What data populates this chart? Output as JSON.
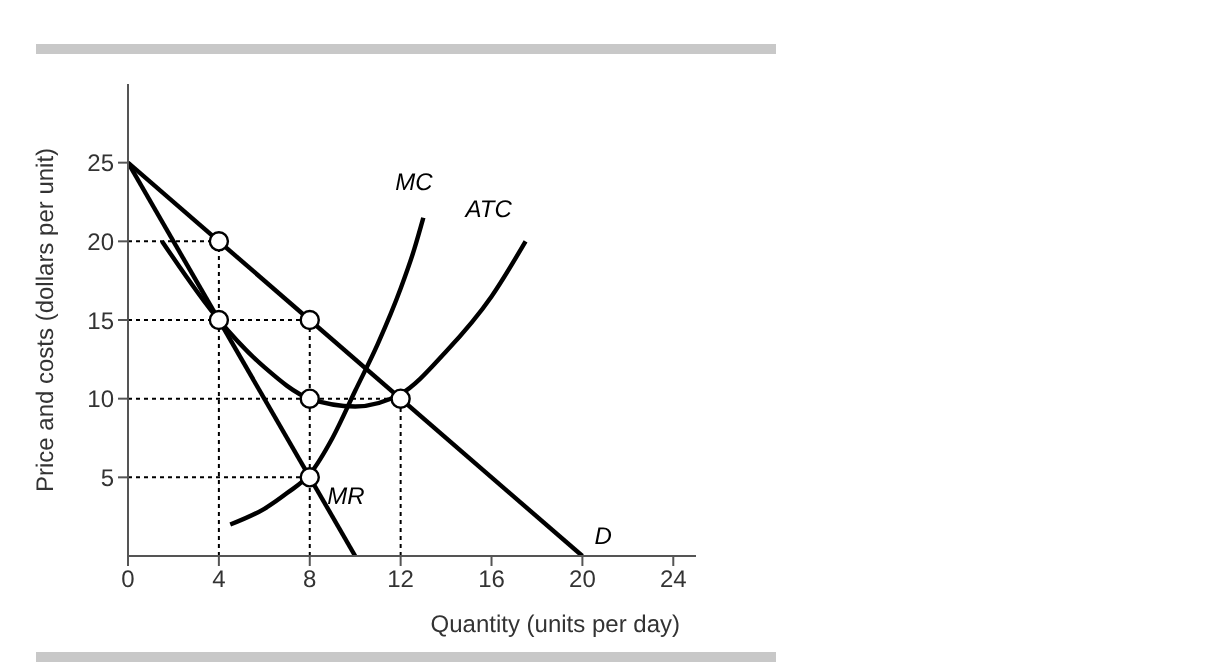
{
  "chart_data": {
    "type": "line",
    "xlabel": "Quantity (units per day)",
    "ylabel": "Price and costs (dollars per unit)",
    "xlim": [
      0,
      25
    ],
    "ylim": [
      0,
      30
    ],
    "xticks": [
      0,
      4,
      8,
      12,
      16,
      20,
      24
    ],
    "yticks": [
      5,
      10,
      15,
      20,
      25
    ],
    "marker": "none",
    "series": [
      {
        "type": "line",
        "line_style": "dotted",
        "color": "#000000",
        "x": [
          0,
          4
        ],
        "values": [
          20,
          20
        ]
      },
      {
        "type": "line",
        "line_style": "dotted",
        "color": "#000000",
        "x": [
          0,
          8
        ],
        "values": [
          15,
          15
        ]
      },
      {
        "type": "line",
        "line_style": "dotted",
        "color": "#000000",
        "x": [
          0,
          12
        ],
        "values": [
          10,
          10
        ]
      },
      {
        "type": "line",
        "line_style": "dotted",
        "color": "#000000",
        "x": [
          0,
          8
        ],
        "values": [
          5,
          5
        ]
      },
      {
        "type": "line",
        "line_style": "dotted",
        "color": "#000000",
        "x": [
          4,
          4
        ],
        "values": [
          0,
          20
        ]
      },
      {
        "type": "line",
        "line_style": "dotted",
        "color": "#000000",
        "x": [
          8,
          8
        ],
        "values": [
          0,
          15
        ]
      },
      {
        "type": "line",
        "line_style": "dotted",
        "color": "#000000",
        "x": [
          12,
          12
        ],
        "values": [
          0,
          10
        ]
      },
      {
        "type": "line",
        "name": "D",
        "line_style": "solid",
        "color": "#000000",
        "x": [
          0,
          20
        ],
        "values": [
          25,
          0
        ]
      },
      {
        "type": "line",
        "name": "MR",
        "line_style": "solid",
        "color": "#000000",
        "x": [
          0,
          10
        ],
        "values": [
          25,
          0
        ]
      },
      {
        "type": "line",
        "name": "MC",
        "line_style": "solid",
        "color": "#000000",
        "x": [
          4.5,
          6,
          7,
          8,
          9,
          10,
          11,
          12,
          12.6,
          13
        ],
        "values": [
          2,
          3,
          4,
          5.2,
          7.5,
          10.5,
          13.5,
          17,
          19.5,
          21.5
        ]
      },
      {
        "type": "line",
        "name": "ATC",
        "line_style": "solid",
        "color": "#000000",
        "x": [
          1.5,
          4,
          6,
          8,
          10,
          12,
          14,
          16,
          17.5
        ],
        "values": [
          20,
          15,
          12,
          10,
          9.5,
          10.3,
          13,
          16.5,
          20
        ]
      },
      {
        "type": "scatter",
        "marker": "circle",
        "color": "#000000",
        "x": [
          4,
          8,
          12,
          4,
          8,
          8
        ],
        "values": [
          20,
          15,
          10,
          15,
          10,
          5
        ]
      }
    ]
  }
}
